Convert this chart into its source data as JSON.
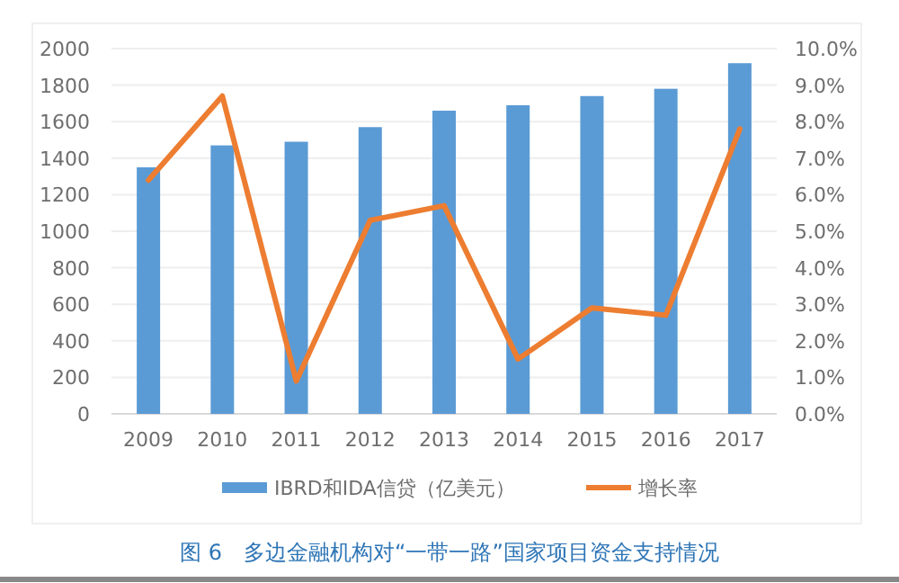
{
  "chart_data": {
    "type": "bar",
    "title": "图 6　多边金融机构对“一带一路”国家项目资金支持情况",
    "categories": [
      "2009",
      "2010",
      "2011",
      "2012",
      "2013",
      "2014",
      "2015",
      "2016",
      "2017"
    ],
    "series": [
      {
        "name": "IBRD和IDA信贷（亿美元）",
        "color": "#5b9bd5",
        "values": [
          1350,
          1470,
          1490,
          1570,
          1660,
          1690,
          1740,
          1780,
          1920
        ]
      },
      {
        "name": "增长率",
        "type": "line",
        "axis": "y2",
        "color": "#ed7d31",
        "values": [
          6.4,
          8.7,
          0.9,
          5.3,
          5.7,
          1.5,
          2.9,
          2.7,
          7.8
        ]
      }
    ],
    "ylim": [
      0,
      2000
    ],
    "yticks": [
      0,
      200,
      400,
      600,
      800,
      1000,
      1200,
      1400,
      1600,
      1800,
      2000
    ],
    "y2lim": [
      0,
      10
    ],
    "y2ticks": [
      {
        "value": 0,
        "label": "0.0%"
      },
      {
        "value": 1,
        "label": "1.0%"
      },
      {
        "value": 2,
        "label": "2.0%"
      },
      {
        "value": 3,
        "label": "3.0%"
      },
      {
        "value": 4,
        "label": "4.0%"
      },
      {
        "value": 5,
        "label": "5.0%"
      },
      {
        "value": 6,
        "label": "6.0%"
      },
      {
        "value": 7,
        "label": "7.0%"
      },
      {
        "value": 8,
        "label": "8.0%"
      },
      {
        "value": 9,
        "label": "9.0%"
      },
      {
        "value": 10,
        "label": "10.0%"
      }
    ],
    "grid": "y",
    "legend": "bottom",
    "marker": "none"
  }
}
